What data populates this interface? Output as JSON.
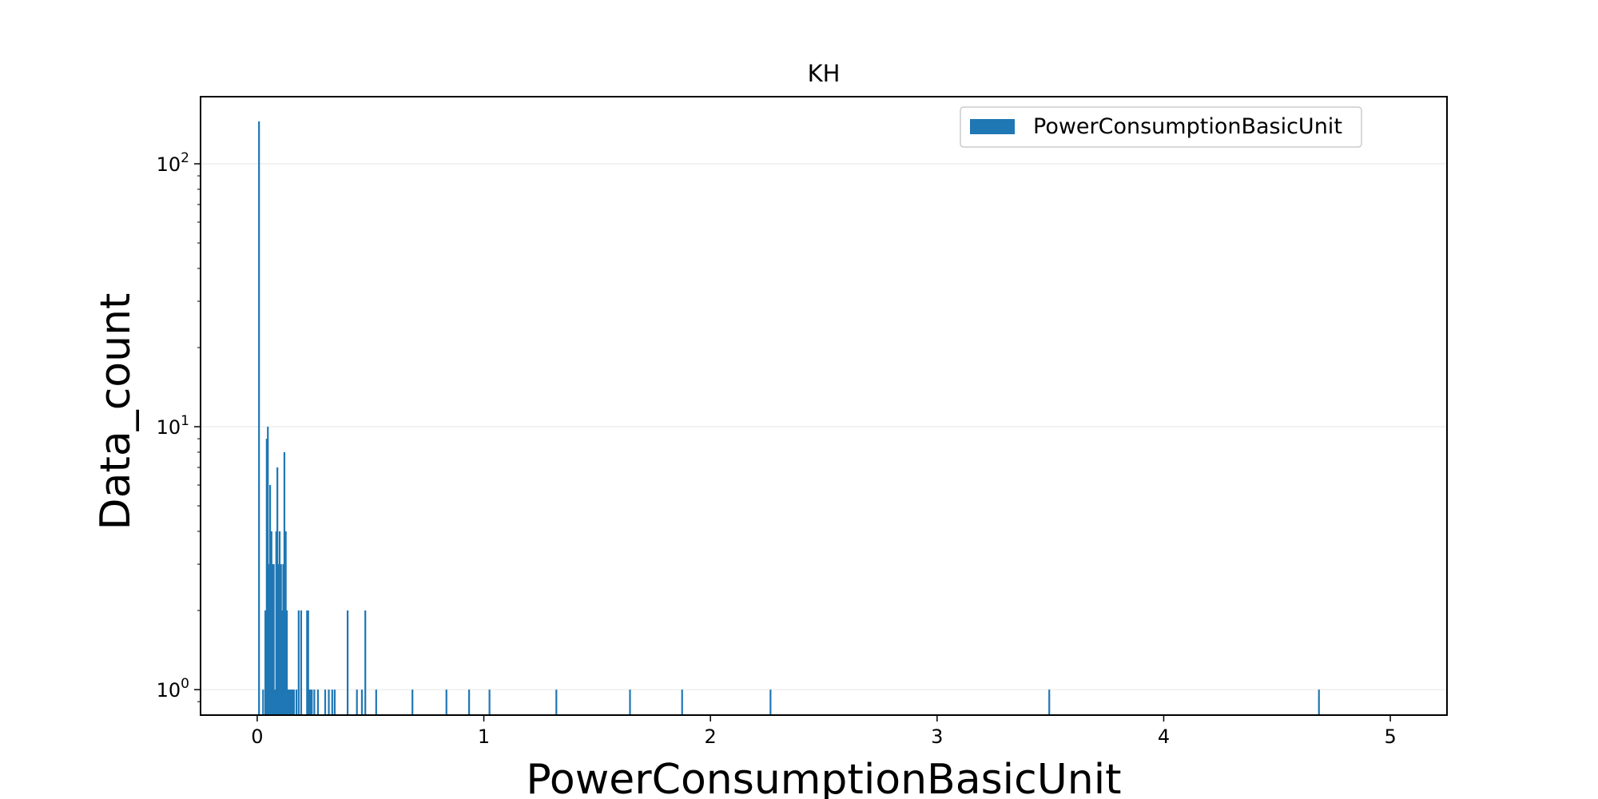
{
  "chart_data": {
    "type": "bar",
    "title": "KH",
    "xlabel": "PowerConsumptionBasicUnit",
    "ylabel": "Data_count",
    "xlim": [
      -0.25,
      5.25
    ],
    "ylim": [
      0.8,
      180
    ],
    "yscale": "log",
    "x_ticks": [
      0,
      1,
      2,
      3,
      4,
      5
    ],
    "y_ticks": [
      {
        "value": 1,
        "base": "10",
        "exp": "0"
      },
      {
        "value": 10,
        "base": "10",
        "exp": "1"
      },
      {
        "value": 100,
        "base": "10",
        "exp": "2"
      }
    ],
    "grid": "y-major",
    "legend": {
      "position": "top-right",
      "label": "PowerConsumptionBasicUnit"
    },
    "bar_color": "#1f77b4",
    "bin_width": 0.0052,
    "series": [
      {
        "name": "PowerConsumptionBasicUnit",
        "x": [
          0.008,
          0.026,
          0.036,
          0.042,
          0.047,
          0.052,
          0.057,
          0.063,
          0.068,
          0.073,
          0.078,
          0.084,
          0.089,
          0.094,
          0.099,
          0.105,
          0.11,
          0.115,
          0.12,
          0.126,
          0.131,
          0.136,
          0.141,
          0.147,
          0.152,
          0.157,
          0.162,
          0.173,
          0.183,
          0.194,
          0.22,
          0.225,
          0.231,
          0.236,
          0.241,
          0.252,
          0.268,
          0.3,
          0.316,
          0.331,
          0.342,
          0.399,
          0.44,
          0.462,
          0.477,
          0.525,
          0.685,
          0.835,
          0.935,
          1.025,
          1.32,
          1.645,
          1.875,
          2.265,
          3.495,
          4.685
        ],
        "values": [
          145,
          1,
          2,
          9,
          10,
          3,
          6,
          4,
          3,
          3,
          1,
          4,
          7,
          3,
          4,
          3,
          2,
          3,
          8,
          4,
          2,
          1,
          1,
          1,
          1,
          1,
          1,
          1,
          2,
          2,
          2,
          2,
          1,
          1,
          1,
          1,
          1,
          1,
          1,
          1,
          1,
          2,
          1,
          1,
          2,
          1,
          1,
          1,
          1,
          1,
          1,
          1,
          1,
          1,
          1,
          1
        ]
      }
    ]
  }
}
